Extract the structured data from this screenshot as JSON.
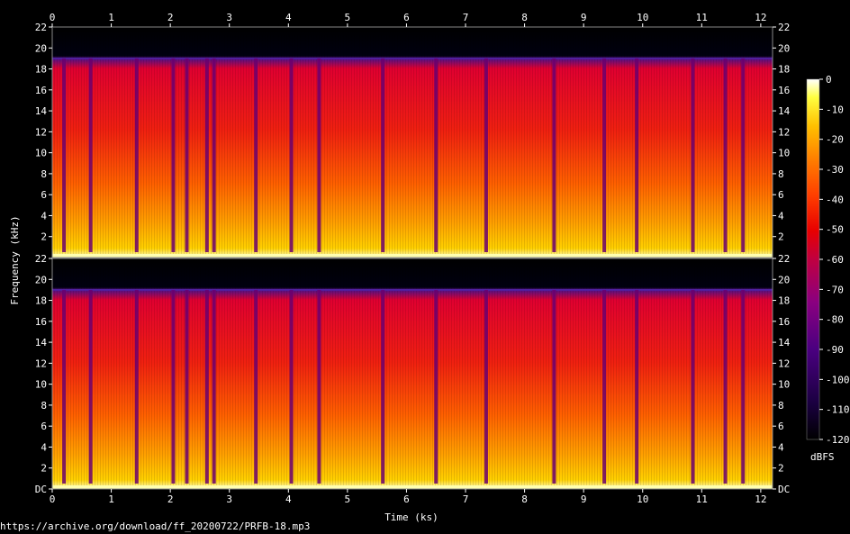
{
  "chart_data": {
    "type": "heatmap",
    "title": "",
    "xlabel": "Time (ks)",
    "ylabel": "Frequency (kHz)",
    "x_range": [
      0,
      12.2
    ],
    "x_ticks": [
      "0",
      "1",
      "2",
      "3",
      "4",
      "5",
      "6",
      "7",
      "8",
      "9",
      "10",
      "11",
      "12"
    ],
    "y_range": [
      0,
      22
    ],
    "channels": [
      {
        "name": "top",
        "y_ticks": [
          "22",
          "20",
          "18",
          "16",
          "14",
          "12",
          "10",
          "8",
          "6",
          "4",
          "2"
        ]
      },
      {
        "name": "bottom",
        "y_ticks": [
          "22",
          "20",
          "18",
          "16",
          "14",
          "12",
          "10",
          "8",
          "6",
          "4",
          "2",
          "DC"
        ]
      }
    ],
    "spectral_cutoff_khz": 19,
    "colorbar": {
      "label": "dBFS",
      "range": [
        -120,
        0
      ],
      "ticks": [
        "0",
        "-10",
        "-20",
        "-30",
        "-40",
        "-50",
        "-60",
        "-70",
        "-80",
        "-90",
        "-100",
        "-110",
        "-120"
      ],
      "colors": [
        "#000000",
        "#1a0040",
        "#4a0080",
        "#8a0080",
        "#c00040",
        "#e80000",
        "#ff4000",
        "#ff8000",
        "#ffc000",
        "#ffff40",
        "#ffffff"
      ]
    },
    "dropouts_ks": [
      0.2,
      0.65,
      1.43,
      2.05,
      2.28,
      2.62,
      2.74,
      3.45,
      4.05,
      4.52,
      5.6,
      6.5,
      7.35,
      8.5,
      9.35,
      9.9,
      10.85,
      11.4,
      11.7
    ]
  },
  "footer": {
    "source": "https://archive.org/download/ff_20200722/PRFB-18.mp3"
  }
}
